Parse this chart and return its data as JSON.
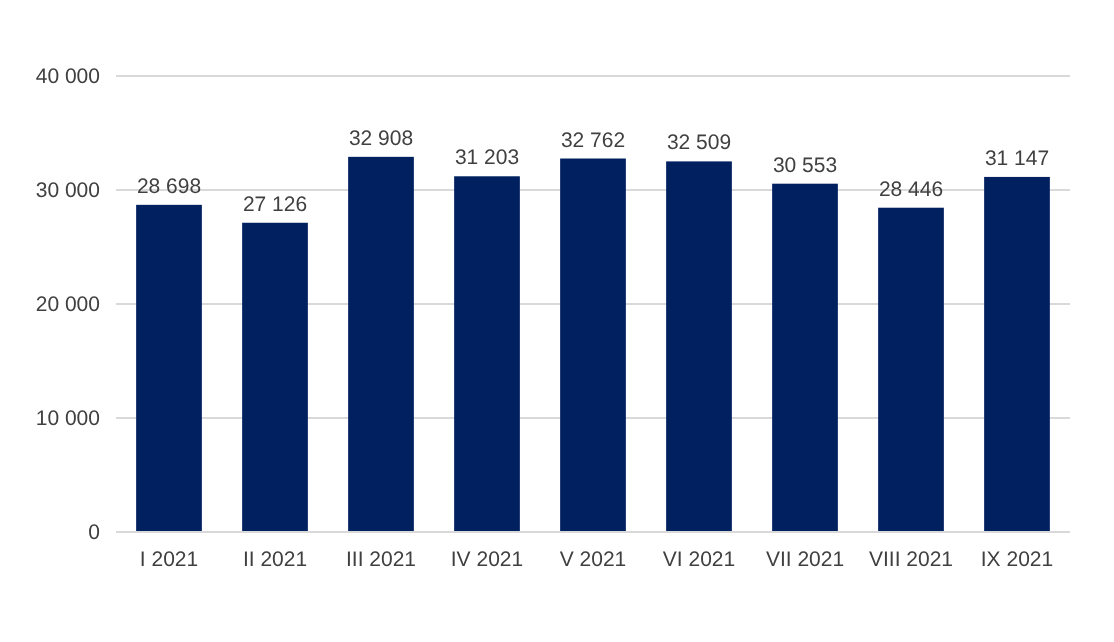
{
  "chart_data": {
    "type": "bar",
    "categories": [
      "I 2021",
      "II 2021",
      "III 2021",
      "IV 2021",
      "V 2021",
      "VI 2021",
      "VII 2021",
      "VIII 2021",
      "IX 2021"
    ],
    "values": [
      28698,
      27126,
      32908,
      31203,
      32762,
      32509,
      30553,
      28446,
      31147
    ],
    "value_labels": [
      "28 698",
      "27 126",
      "32 908",
      "31 203",
      "32 762",
      "32 509",
      "30 553",
      "28 446",
      "31 147"
    ],
    "color": "#002060",
    "ylim": [
      0,
      40000
    ],
    "yticks": [
      {
        "value": 0,
        "label": "0"
      },
      {
        "value": 10000,
        "label": "10 000"
      },
      {
        "value": 20000,
        "label": "20 000"
      },
      {
        "value": 30000,
        "label": "30 000"
      },
      {
        "value": 40000,
        "label": "40 000"
      }
    ],
    "grid": "y"
  }
}
